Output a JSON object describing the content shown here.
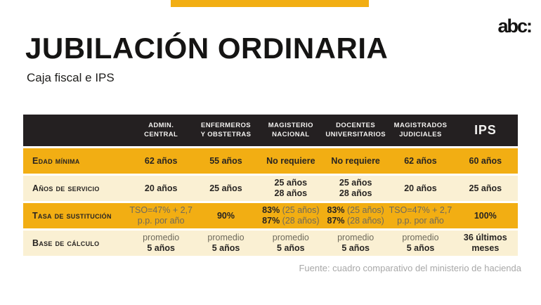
{
  "page": {
    "brand_logo": "abc:",
    "title": "JUBILACIÓN ORDINARIA",
    "subtitle": "Caja fiscal e IPS",
    "source": "Fuente: cuadro comparativo del ministerio de hacienda"
  },
  "colors": {
    "gold": "#F2AE13",
    "cream": "#FAF0D3",
    "header_bg": "#242021",
    "text_dark": "#272422",
    "muted_text": "#6E6A5C",
    "source_gray": "#A8A8A8"
  },
  "table": {
    "columns": [
      {
        "lines": [
          "ADMIN.",
          "CENTRAL"
        ]
      },
      {
        "lines": [
          "ENFERMEROS",
          "Y OBSTETRAS"
        ]
      },
      {
        "lines": [
          "MAGISTERIO",
          "NACIONAL"
        ]
      },
      {
        "lines": [
          "DOCENTES",
          "UNIVERSITARIOS"
        ]
      },
      {
        "lines": [
          "MAGISTRADOS",
          "JUDICIALES"
        ]
      },
      {
        "lines": [
          "IPS"
        ],
        "large": true
      }
    ],
    "rows": [
      {
        "label": "Edad mínima",
        "tone": "gold",
        "cells": [
          [
            [
              {
                "t": "62 años",
                "b": true
              }
            ]
          ],
          [
            [
              {
                "t": "55 años",
                "b": true
              }
            ]
          ],
          [
            [
              {
                "t": "No requiere",
                "b": true
              }
            ]
          ],
          [
            [
              {
                "t": "No requiere",
                "b": true
              }
            ]
          ],
          [
            [
              {
                "t": "62 años",
                "b": true
              }
            ]
          ],
          [
            [
              {
                "t": "60 años",
                "b": true
              }
            ]
          ]
        ]
      },
      {
        "label": "Años de servicio",
        "tone": "cream",
        "cells": [
          [
            [
              {
                "t": "20 años",
                "b": true
              }
            ]
          ],
          [
            [
              {
                "t": "25 años",
                "b": true
              }
            ]
          ],
          [
            [
              {
                "t": "25 años",
                "b": true
              }
            ],
            [
              {
                "t": "28 años",
                "b": true
              }
            ]
          ],
          [
            [
              {
                "t": "25 años",
                "b": true
              }
            ],
            [
              {
                "t": "28 años",
                "b": true
              }
            ]
          ],
          [
            [
              {
                "t": "20 años",
                "b": true
              }
            ]
          ],
          [
            [
              {
                "t": "25 años",
                "b": true
              }
            ]
          ]
        ]
      },
      {
        "label": "Tasa de sustitución",
        "tone": "gold",
        "cells": [
          [
            [
              {
                "t": "TSO=47% + 2,7",
                "b": false
              }
            ],
            [
              {
                "t": "p.p. por año",
                "b": false
              }
            ]
          ],
          [
            [
              {
                "t": "90%",
                "b": true
              }
            ]
          ],
          [
            [
              {
                "t": "83% ",
                "b": true
              },
              {
                "t": "(25 años)",
                "b": false
              }
            ],
            [
              {
                "t": "87% ",
                "b": true
              },
              {
                "t": "(28 años)",
                "b": false
              }
            ]
          ],
          [
            [
              {
                "t": "83% ",
                "b": true
              },
              {
                "t": "(25 años)",
                "b": false
              }
            ],
            [
              {
                "t": "87% ",
                "b": true
              },
              {
                "t": "(28 años)",
                "b": false
              }
            ]
          ],
          [
            [
              {
                "t": "TSO=47% + 2,7",
                "b": false
              }
            ],
            [
              {
                "t": "p.p. por año",
                "b": false
              }
            ]
          ],
          [
            [
              {
                "t": "100%",
                "b": true
              }
            ]
          ]
        ]
      },
      {
        "label": "Base de cálculo",
        "tone": "cream",
        "cells": [
          [
            [
              {
                "t": "promedio",
                "b": false
              }
            ],
            [
              {
                "t": "5 años",
                "b": true
              }
            ]
          ],
          [
            [
              {
                "t": "promedio",
                "b": false
              }
            ],
            [
              {
                "t": "5 años",
                "b": true
              }
            ]
          ],
          [
            [
              {
                "t": "promedio",
                "b": false
              }
            ],
            [
              {
                "t": "5 años",
                "b": true
              }
            ]
          ],
          [
            [
              {
                "t": "promedio",
                "b": false
              }
            ],
            [
              {
                "t": "5 años",
                "b": true
              }
            ]
          ],
          [
            [
              {
                "t": "promedio",
                "b": false
              }
            ],
            [
              {
                "t": "5 años",
                "b": true
              }
            ]
          ],
          [
            [
              {
                "t": "36 últimos",
                "b": true
              }
            ],
            [
              {
                "t": "meses",
                "b": true
              }
            ]
          ]
        ]
      }
    ]
  }
}
